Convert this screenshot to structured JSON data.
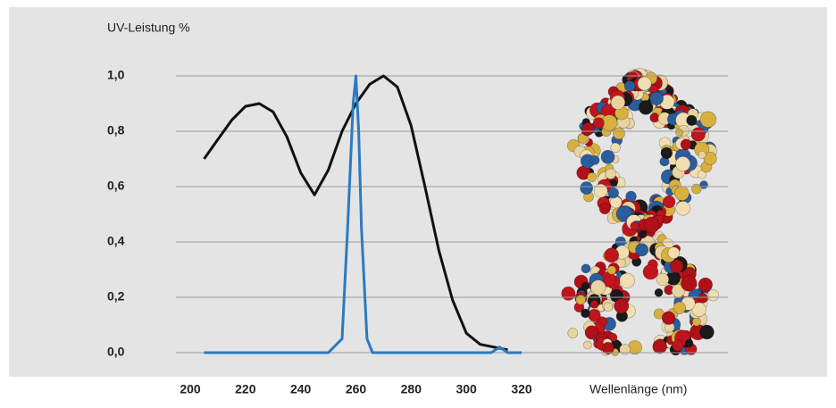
{
  "chart_data": {
    "type": "line",
    "y_label": "UV-Leistung %",
    "x_label": "Wellenlänge (nm)",
    "xlim": [
      200,
      320
    ],
    "xticks": [
      200,
      220,
      240,
      260,
      280,
      300,
      320
    ],
    "ylim": [
      0,
      1
    ],
    "yticks": [
      {
        "value": 0,
        "label": "0,0"
      },
      {
        "value": 0.2,
        "label": "0,2"
      },
      {
        "value": 0.4,
        "label": "0,4"
      },
      {
        "value": 0.6,
        "label": "0,6"
      },
      {
        "value": 0.8,
        "label": "0,8"
      },
      {
        "value": 1,
        "label": "1,0"
      }
    ],
    "grid": true,
    "series": [
      {
        "color": "#111111",
        "x": [
          205,
          210,
          215,
          220,
          225,
          230,
          235,
          240,
          245,
          250,
          255,
          260,
          265,
          270,
          275,
          280,
          285,
          290,
          295,
          300,
          305,
          310,
          315
        ],
        "values": [
          0.7,
          0.77,
          0.84,
          0.89,
          0.9,
          0.87,
          0.78,
          0.65,
          0.57,
          0.66,
          0.8,
          0.9,
          0.97,
          1.0,
          0.96,
          0.82,
          0.6,
          0.37,
          0.19,
          0.07,
          0.03,
          0.02,
          0.01
        ]
      },
      {
        "color": "#2a7ac0",
        "x": [
          205,
          250,
          255,
          257,
          259,
          260,
          261,
          262,
          264,
          266,
          309,
          312,
          315,
          320
        ],
        "values": [
          0,
          0,
          0.05,
          0.45,
          0.9,
          1.0,
          0.8,
          0.45,
          0.05,
          0,
          0,
          0.02,
          0,
          0
        ]
      }
    ]
  }
}
